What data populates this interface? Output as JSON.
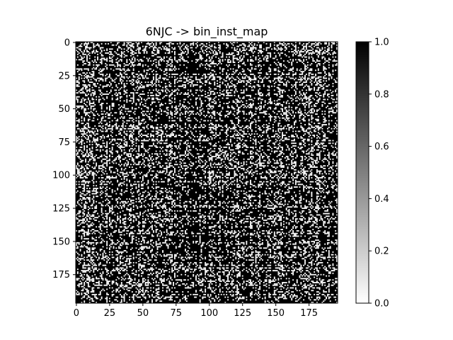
{
  "chart_data": {
    "type": "heatmap",
    "title": "6NJC -> bin_inst_map",
    "xlabel": "",
    "ylabel": "",
    "rows": 197,
    "cols": 197,
    "value_type": "binary",
    "colormap": "gray_r",
    "colormap_colors": {
      "low": "#ffffff",
      "high": "#000000"
    },
    "fill_fraction_approx": 0.8,
    "xticks": [
      "0",
      "25",
      "50",
      "75",
      "100",
      "125",
      "150",
      "175"
    ],
    "yticks": [
      "0",
      "25",
      "50",
      "75",
      "100",
      "125",
      "150",
      "175"
    ],
    "colorbar": {
      "range": [
        0.0,
        1.0
      ],
      "ticks": [
        "0.0",
        "0.2",
        "0.4",
        "0.6",
        "0.8",
        "1.0"
      ]
    },
    "grid": false
  }
}
